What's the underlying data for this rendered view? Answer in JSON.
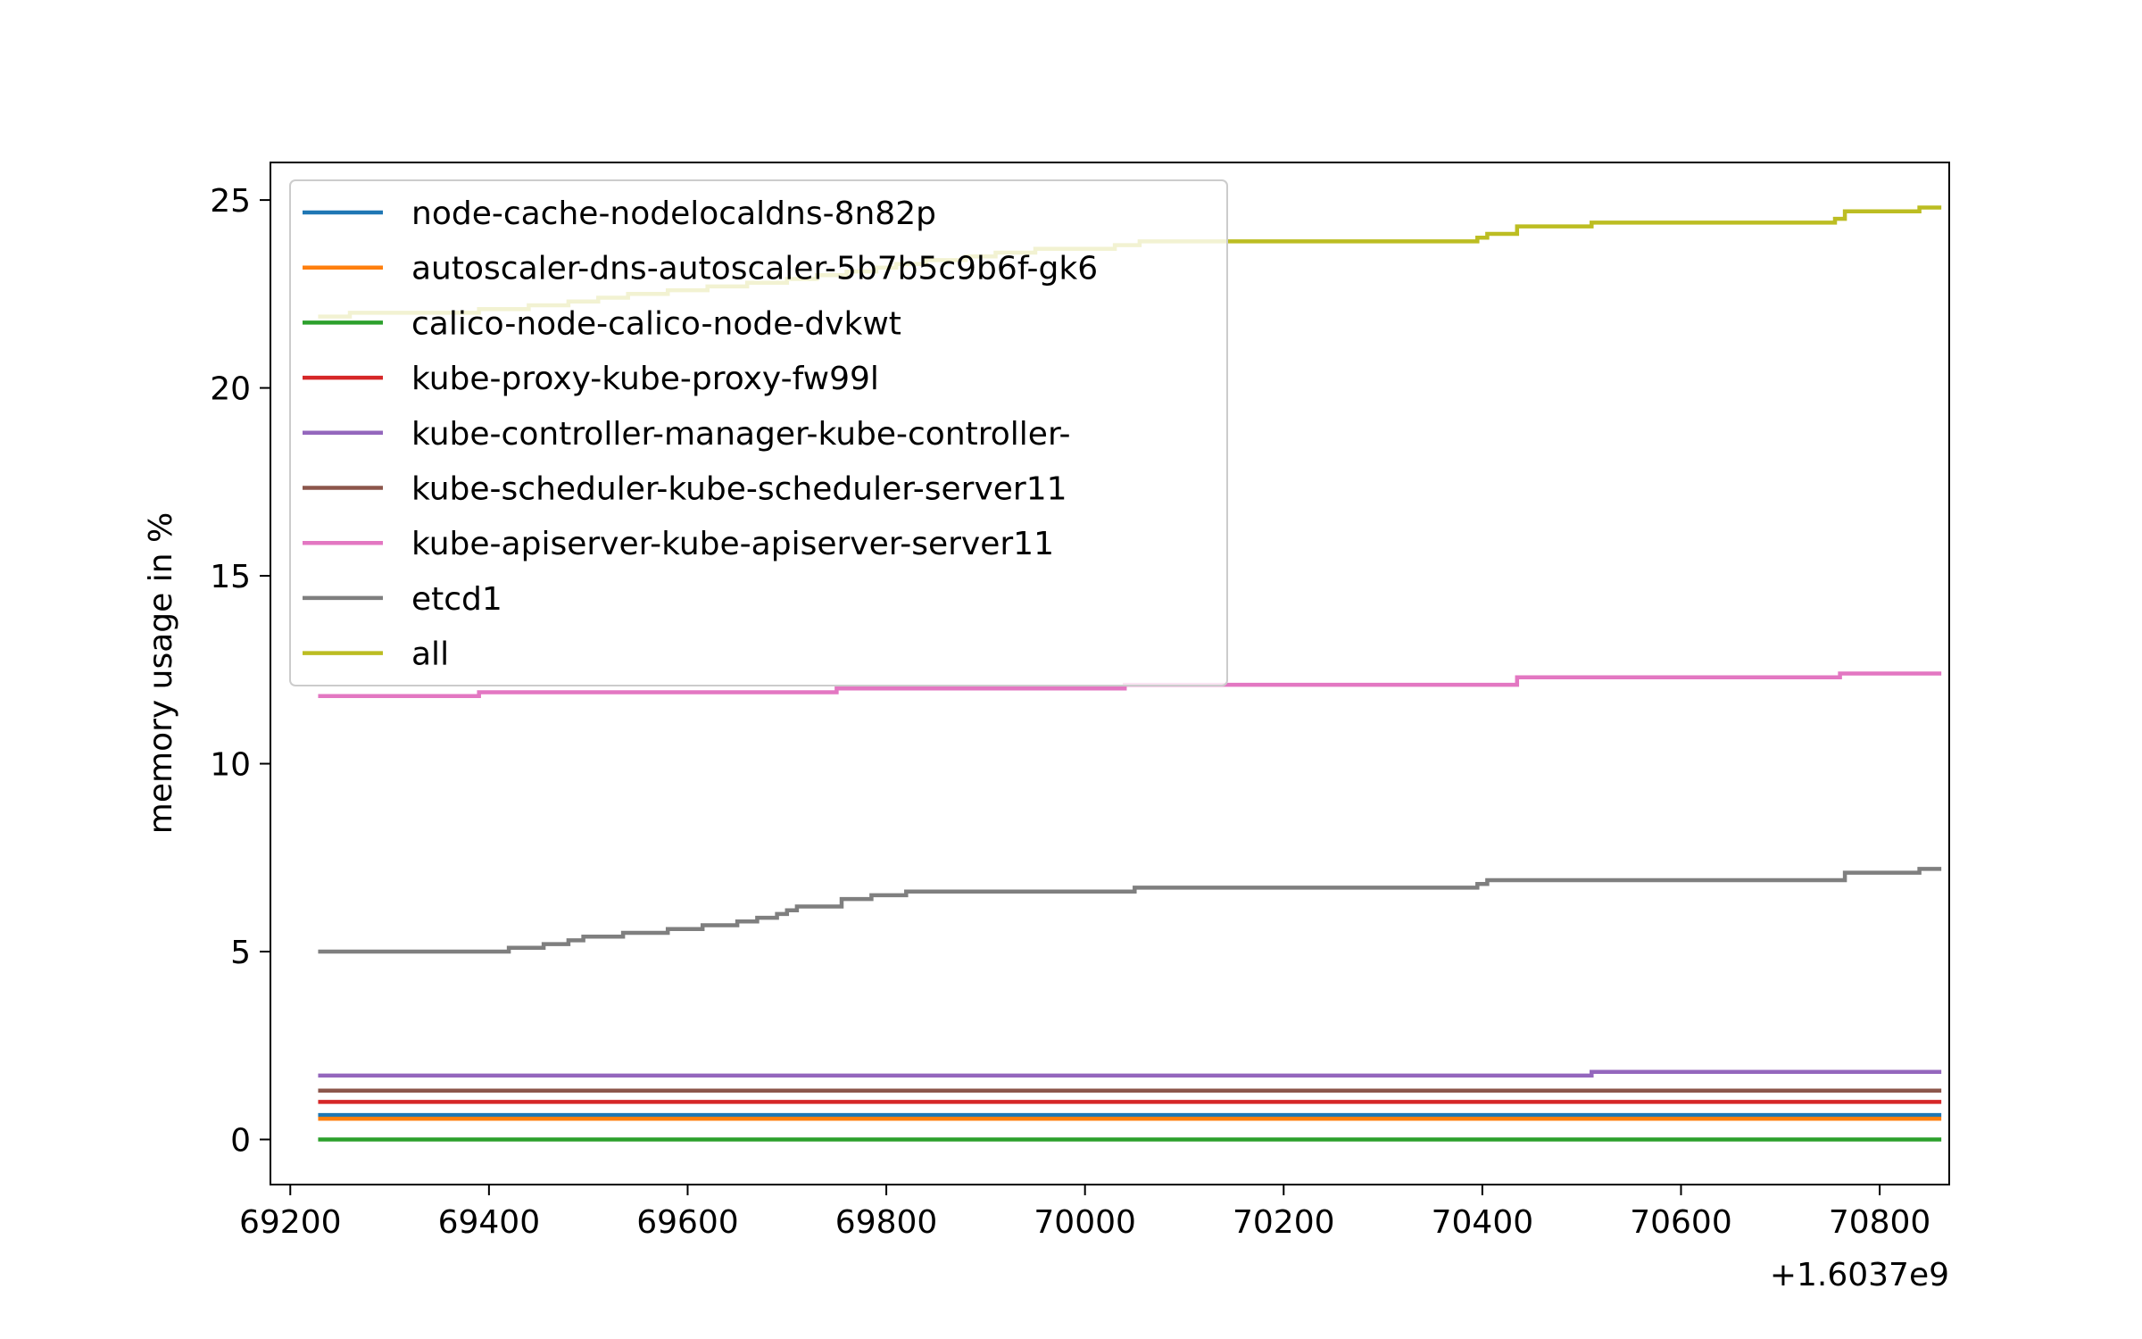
{
  "chart_data": {
    "type": "line",
    "title": "",
    "xlabel": "",
    "ylabel": "memory usage in %",
    "x_offset_label": "+1.6037e9",
    "xlim": [
      69180,
      70870
    ],
    "ylim": [
      -1.2,
      26.0
    ],
    "xticks": [
      69200,
      69400,
      69600,
      69800,
      70000,
      70200,
      70400,
      70600,
      70800
    ],
    "yticks": [
      0,
      5,
      10,
      15,
      20,
      25
    ],
    "grid": false,
    "legend_position": "upper-left",
    "series": [
      {
        "name": "node-cache-nodelocaldns-8n82p",
        "color": "#1f77b4",
        "points": [
          [
            69230,
            0.65
          ],
          [
            70860,
            0.65
          ]
        ]
      },
      {
        "name": "autoscaler-dns-autoscaler-5b7b5c9b6f-gk6",
        "color": "#ff7f0e",
        "points": [
          [
            69230,
            0.55
          ],
          [
            70860,
            0.55
          ]
        ]
      },
      {
        "name": "calico-node-calico-node-dvkwt",
        "color": "#2ca02c",
        "points": [
          [
            69230,
            0.0
          ],
          [
            70860,
            0.0
          ]
        ]
      },
      {
        "name": "kube-proxy-kube-proxy-fw99l",
        "color": "#d62728",
        "points": [
          [
            69230,
            1.0
          ],
          [
            70860,
            1.0
          ]
        ]
      },
      {
        "name": "kube-controller-manager-kube-controller-",
        "color": "#9467bd",
        "points": [
          [
            69230,
            1.7
          ],
          [
            70510,
            1.7
          ],
          [
            70510,
            1.8
          ],
          [
            70860,
            1.8
          ]
        ]
      },
      {
        "name": "kube-scheduler-kube-scheduler-server11",
        "color": "#8c564b",
        "points": [
          [
            69230,
            1.3
          ],
          [
            70860,
            1.3
          ]
        ]
      },
      {
        "name": "kube-apiserver-kube-apiserver-server11",
        "color": "#e377c2",
        "points": [
          [
            69230,
            11.8
          ],
          [
            69390,
            11.8
          ],
          [
            69390,
            11.9
          ],
          [
            69750,
            11.9
          ],
          [
            69750,
            12.0
          ],
          [
            70040,
            12.0
          ],
          [
            70040,
            12.1
          ],
          [
            70435,
            12.1
          ],
          [
            70435,
            12.3
          ],
          [
            70760,
            12.3
          ],
          [
            70760,
            12.4
          ],
          [
            70860,
            12.4
          ]
        ]
      },
      {
        "name": "etcd1",
        "color": "#7f7f7f",
        "points": [
          [
            69230,
            5.0
          ],
          [
            69420,
            5.0
          ],
          [
            69420,
            5.1
          ],
          [
            69455,
            5.1
          ],
          [
            69455,
            5.2
          ],
          [
            69480,
            5.2
          ],
          [
            69480,
            5.3
          ],
          [
            69495,
            5.3
          ],
          [
            69495,
            5.4
          ],
          [
            69535,
            5.4
          ],
          [
            69535,
            5.5
          ],
          [
            69580,
            5.5
          ],
          [
            69580,
            5.6
          ],
          [
            69615,
            5.6
          ],
          [
            69615,
            5.7
          ],
          [
            69650,
            5.7
          ],
          [
            69650,
            5.8
          ],
          [
            69670,
            5.8
          ],
          [
            69670,
            5.9
          ],
          [
            69690,
            5.9
          ],
          [
            69690,
            6.0
          ],
          [
            69700,
            6.0
          ],
          [
            69700,
            6.1
          ],
          [
            69710,
            6.1
          ],
          [
            69710,
            6.2
          ],
          [
            69755,
            6.2
          ],
          [
            69755,
            6.4
          ],
          [
            69785,
            6.4
          ],
          [
            69785,
            6.5
          ],
          [
            69820,
            6.5
          ],
          [
            69820,
            6.6
          ],
          [
            70050,
            6.6
          ],
          [
            70050,
            6.7
          ],
          [
            70395,
            6.7
          ],
          [
            70395,
            6.8
          ],
          [
            70405,
            6.8
          ],
          [
            70405,
            6.9
          ],
          [
            70765,
            6.9
          ],
          [
            70765,
            7.1
          ],
          [
            70840,
            7.1
          ],
          [
            70840,
            7.2
          ],
          [
            70860,
            7.2
          ]
        ]
      },
      {
        "name": "all",
        "color": "#bcbd22",
        "points": [
          [
            69230,
            21.9
          ],
          [
            69260,
            21.9
          ],
          [
            69260,
            22.0
          ],
          [
            69390,
            22.0
          ],
          [
            69390,
            22.1
          ],
          [
            69440,
            22.1
          ],
          [
            69440,
            22.2
          ],
          [
            69480,
            22.2
          ],
          [
            69480,
            22.3
          ],
          [
            69510,
            22.3
          ],
          [
            69510,
            22.4
          ],
          [
            69540,
            22.4
          ],
          [
            69540,
            22.5
          ],
          [
            69580,
            22.5
          ],
          [
            69580,
            22.6
          ],
          [
            69620,
            22.6
          ],
          [
            69620,
            22.7
          ],
          [
            69660,
            22.7
          ],
          [
            69660,
            22.8
          ],
          [
            69700,
            22.8
          ],
          [
            69700,
            22.9
          ],
          [
            69730,
            22.9
          ],
          [
            69730,
            23.0
          ],
          [
            69760,
            23.0
          ],
          [
            69760,
            23.1
          ],
          [
            69790,
            23.1
          ],
          [
            69790,
            23.2
          ],
          [
            69810,
            23.2
          ],
          [
            69810,
            23.3
          ],
          [
            69840,
            23.3
          ],
          [
            69840,
            23.4
          ],
          [
            69880,
            23.4
          ],
          [
            69880,
            23.5
          ],
          [
            69910,
            23.5
          ],
          [
            69910,
            23.6
          ],
          [
            69950,
            23.6
          ],
          [
            69950,
            23.7
          ],
          [
            70030,
            23.7
          ],
          [
            70030,
            23.8
          ],
          [
            70055,
            23.8
          ],
          [
            70055,
            23.9
          ],
          [
            70395,
            23.9
          ],
          [
            70395,
            24.0
          ],
          [
            70405,
            24.0
          ],
          [
            70405,
            24.1
          ],
          [
            70435,
            24.1
          ],
          [
            70435,
            24.3
          ],
          [
            70510,
            24.3
          ],
          [
            70510,
            24.4
          ],
          [
            70755,
            24.4
          ],
          [
            70755,
            24.5
          ],
          [
            70765,
            24.5
          ],
          [
            70765,
            24.7
          ],
          [
            70840,
            24.7
          ],
          [
            70840,
            24.8
          ],
          [
            70860,
            24.8
          ]
        ]
      }
    ]
  }
}
